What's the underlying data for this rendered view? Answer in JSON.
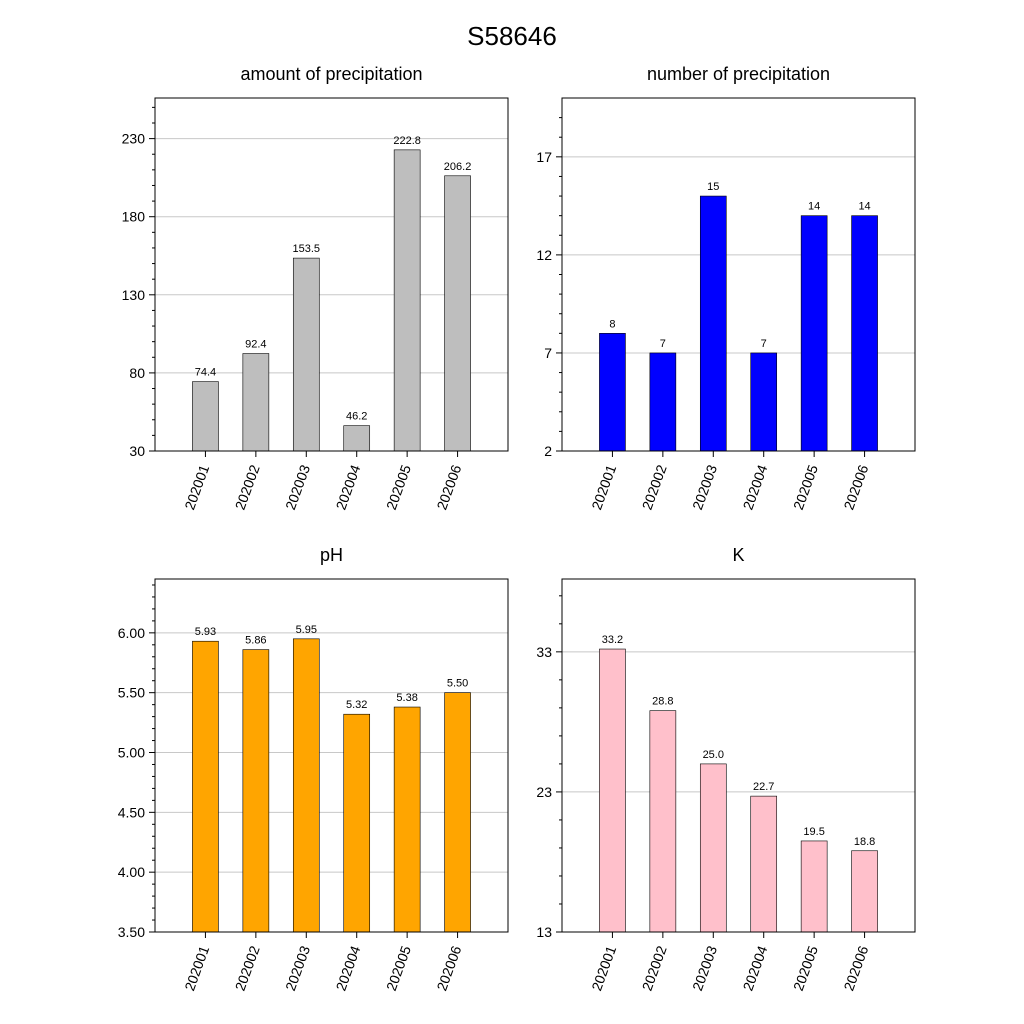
{
  "figure": {
    "title": "S58646"
  },
  "chart_data": [
    {
      "type": "bar",
      "title": "amount of precipitation",
      "xlabel": "",
      "ylabel": "",
      "categories": [
        "202001",
        "202002",
        "202003",
        "202004",
        "202005",
        "202006"
      ],
      "values": [
        74.4,
        92.4,
        153.5,
        46.2,
        222.8,
        206.2
      ],
      "data_labels": [
        "74.4",
        "92.4",
        "153.5",
        "46.2",
        "222.8",
        "206.2"
      ],
      "ylim": [
        30,
        256
      ],
      "yticks": [
        30,
        80,
        130,
        180,
        230
      ],
      "ytick_labels": [
        "30",
        "80",
        "130",
        "180",
        "230"
      ],
      "bar_color": "#bebebe",
      "grid": true
    },
    {
      "type": "bar",
      "title": "number of precipitation",
      "xlabel": "",
      "ylabel": "",
      "categories": [
        "202001",
        "202002",
        "202003",
        "202004",
        "202005",
        "202006"
      ],
      "values": [
        8,
        7,
        15,
        7,
        14,
        14
      ],
      "data_labels": [
        "8",
        "7",
        "15",
        "7",
        "14",
        "14"
      ],
      "ylim": [
        2,
        20
      ],
      "yticks": [
        2,
        7,
        12,
        17
      ],
      "ytick_labels": [
        "2",
        "7",
        "12",
        "17"
      ],
      "bar_color": "#0000ff",
      "grid": true
    },
    {
      "type": "bar",
      "title": "pH",
      "xlabel": "",
      "ylabel": "",
      "categories": [
        "202001",
        "202002",
        "202003",
        "202004",
        "202005",
        "202006"
      ],
      "values": [
        5.93,
        5.86,
        5.95,
        5.32,
        5.38,
        5.5
      ],
      "data_labels": [
        "5.93",
        "5.86",
        "5.95",
        "5.32",
        "5.38",
        "5.50"
      ],
      "ylim": [
        3.5,
        6.45
      ],
      "yticks": [
        3.5,
        4.0,
        4.5,
        5.0,
        5.5,
        6.0
      ],
      "ytick_labels": [
        "3.50",
        "4.00",
        "4.50",
        "5.00",
        "5.50",
        "6.00"
      ],
      "bar_color": "#ffa500",
      "grid": true
    },
    {
      "type": "bar",
      "title": "K",
      "xlabel": "",
      "ylabel": "",
      "categories": [
        "202001",
        "202002",
        "202003",
        "202004",
        "202005",
        "202006"
      ],
      "values": [
        33.2,
        28.8,
        25.0,
        22.7,
        19.5,
        18.8
      ],
      "data_labels": [
        "33.2",
        "28.8",
        "25.0",
        "22.7",
        "19.5",
        "18.8"
      ],
      "ylim": [
        13,
        38.2
      ],
      "yticks": [
        13,
        23,
        33
      ],
      "ytick_labels": [
        "13",
        "23",
        "33"
      ],
      "bar_color": "#ffc0cb",
      "grid": true
    }
  ]
}
